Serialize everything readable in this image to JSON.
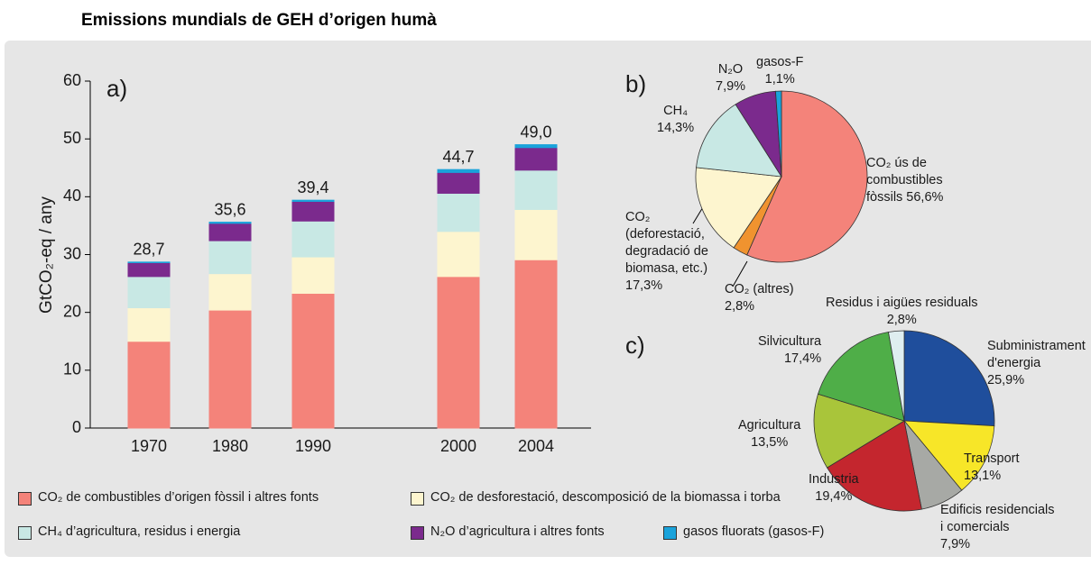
{
  "title": "Emissions mundials de GEH d’origen humà",
  "chart_data": [
    {
      "type": "bar",
      "label": "a)",
      "y_label": "GtCO₂-eq / any",
      "categories": [
        "1970",
        "1980",
        "1990",
        "2000",
        "2004"
      ],
      "series": [
        {
          "name": "CO₂ de combustibles d’origen fòssil i altres fonts",
          "color": "#f4837a",
          "values": [
            15.0,
            20.4,
            23.3,
            26.2,
            29.1
          ]
        },
        {
          "name": "CO₂ de desforestació, descomposició de la biomassa i torba",
          "color": "#fdf5cf",
          "values": [
            5.8,
            6.3,
            6.3,
            7.8,
            8.7
          ]
        },
        {
          "name": "CH₄ d’agricultura, residus i energia",
          "color": "#c8e8e4",
          "values": [
            5.4,
            5.7,
            6.2,
            6.6,
            6.8
          ]
        },
        {
          "name": "N₂O d’agricultura i altres fonts",
          "color": "#7b2a8d",
          "values": [
            2.4,
            3.0,
            3.4,
            3.6,
            3.9
          ]
        },
        {
          "name": "gasos fluorats (gasos-F)",
          "color": "#1aa3db",
          "values": [
            0.1,
            0.2,
            0.2,
            0.5,
            0.5
          ]
        }
      ],
      "totals": [
        28.7,
        35.6,
        39.4,
        44.7,
        49.0
      ],
      "total_labels": [
        "28,7",
        "35,6",
        "39,4",
        "44,7",
        "49,0"
      ],
      "ylim": [
        0,
        60
      ],
      "yticks": [
        0,
        10,
        20,
        30,
        40,
        50,
        60
      ]
    },
    {
      "type": "pie",
      "label": "b)",
      "categories": [
        "CO₂ ús de\ncombustibles\nfòssils",
        "CO₂ (altres)",
        "CO₂\n(deforestació,\ndegradació de\nbiomasa, etc.)",
        "CH₄",
        "N₂O",
        "gasos-F"
      ],
      "values": [
        56.6,
        2.8,
        17.3,
        14.3,
        7.9,
        1.1
      ],
      "value_labels": [
        "56,6%",
        "2,8%",
        "17,3%",
        "14,3%",
        "7,9%",
        "1,1%"
      ],
      "colors": [
        "#f4837a",
        "#f0932f",
        "#fdf5cf",
        "#c8e8e4",
        "#7b2a8d",
        "#1aa3db"
      ]
    },
    {
      "type": "pie",
      "label": "c)",
      "categories": [
        "Subministrament\nd'energia",
        "Transport",
        "Edificis residencials\ni comercials",
        "Industria",
        "Agricultura",
        "Silvicultura",
        "Residus i aigües residuals"
      ],
      "values": [
        25.9,
        13.1,
        7.9,
        19.4,
        13.5,
        17.4,
        2.8
      ],
      "value_labels": [
        "25,9%",
        "13,1%",
        "7,9%",
        "19,4%",
        "13,5%",
        "17,4%",
        "2,8%"
      ],
      "colors": [
        "#1f4e9c",
        "#f7e628",
        "#a7a9a5",
        "#c4262e",
        "#a9c53a",
        "#4fae48",
        "#dfeef0"
      ]
    }
  ]
}
